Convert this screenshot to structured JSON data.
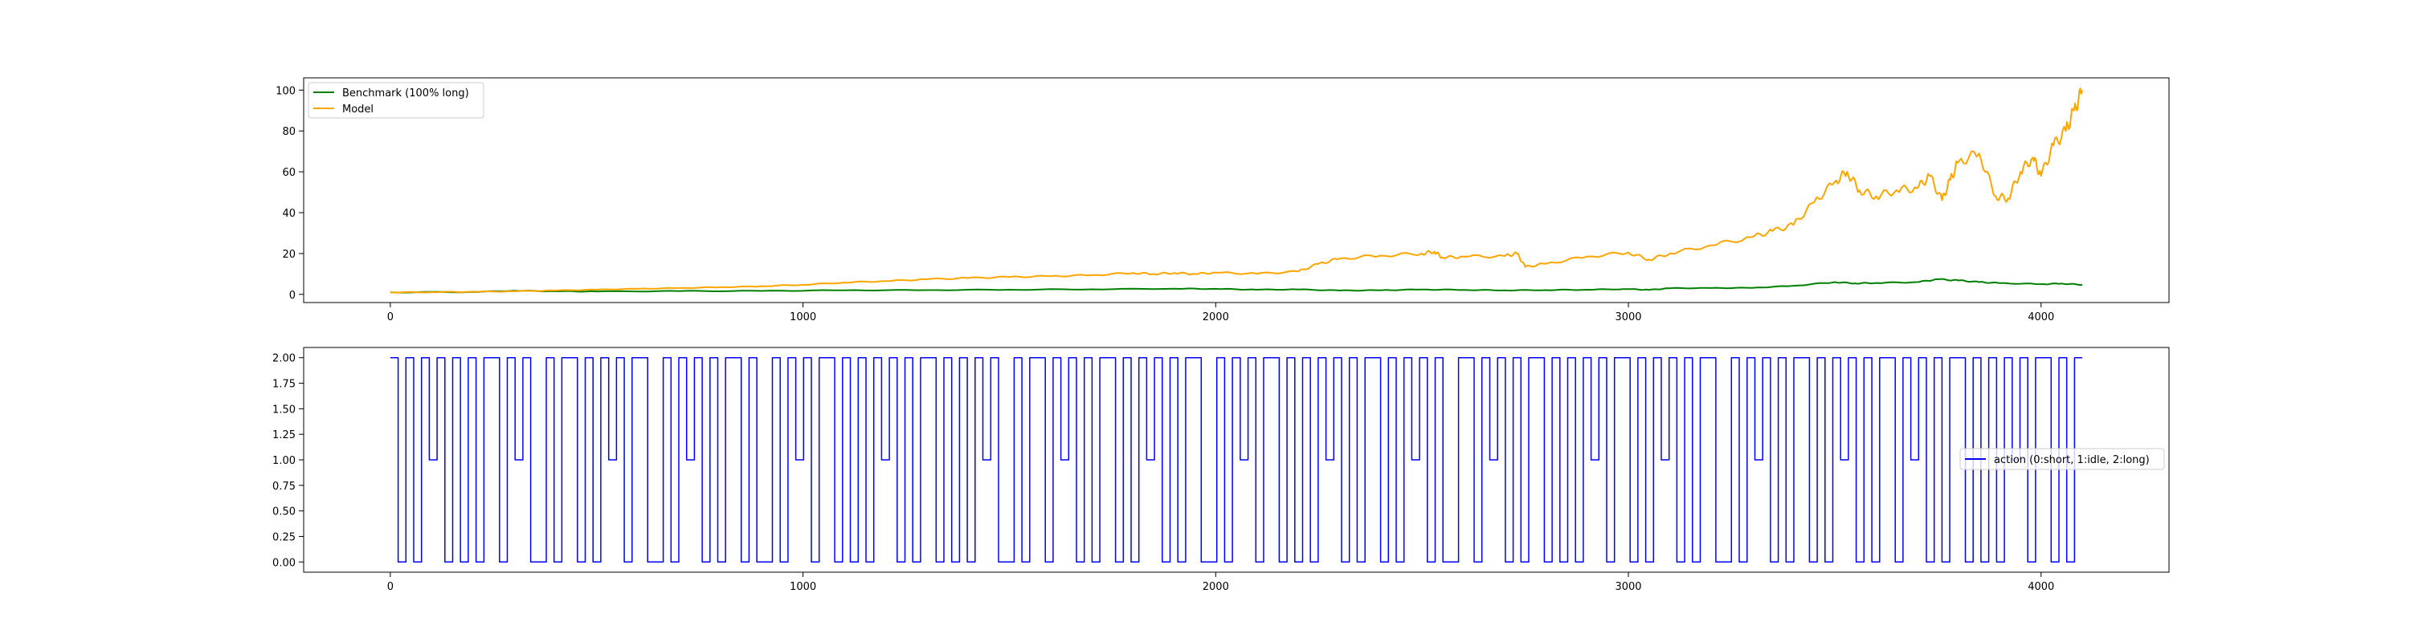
{
  "chart_data": [
    {
      "type": "line",
      "title": "",
      "xlabel": "",
      "ylabel": "",
      "xlim": [
        -210,
        4310
      ],
      "ylim": [
        -4,
        106
      ],
      "grid": false,
      "legend_position": "top-left",
      "x_ticks": [
        0,
        1000,
        2000,
        3000,
        4000
      ],
      "x_tick_labels": [
        "0",
        "1000",
        "2000",
        "3000",
        "4000"
      ],
      "y_ticks": [
        0,
        20,
        40,
        60,
        80,
        100
      ],
      "y_tick_labels": [
        "0",
        "20",
        "40",
        "60",
        "80",
        "100"
      ],
      "series": [
        {
          "name": "Benchmark (100% long)",
          "color": "#008000",
          "x": [
            0,
            200,
            300,
            400,
            500,
            700,
            900,
            1100,
            1300,
            1500,
            1700,
            1900,
            2000,
            2100,
            2200,
            2300,
            2400,
            2500,
            2600,
            2700,
            2800,
            2900,
            3000,
            3050,
            3100,
            3200,
            3300,
            3400,
            3500,
            3550,
            3600,
            3700,
            3750,
            3800,
            3850,
            3900,
            4000,
            4050,
            4100
          ],
          "values": [
            1.0,
            1.2,
            1.8,
            1.5,
            1.4,
            1.6,
            1.7,
            2.0,
            2.1,
            2.3,
            2.5,
            2.8,
            2.7,
            2.3,
            2.4,
            1.9,
            2.0,
            2.4,
            2.2,
            2.0,
            2.1,
            2.3,
            2.6,
            2.2,
            3.0,
            3.1,
            3.2,
            4.2,
            6.0,
            5.4,
            5.6,
            6.0,
            7.4,
            6.8,
            6.0,
            5.5,
            5.0,
            5.3,
            4.7
          ]
        },
        {
          "name": "Model",
          "color": "#FFA500",
          "x": [
            0,
            100,
            200,
            300,
            400,
            500,
            600,
            700,
            800,
            900,
            1000,
            1100,
            1200,
            1300,
            1400,
            1500,
            1600,
            1700,
            1800,
            1850,
            1900,
            1950,
            2000,
            2100,
            2200,
            2250,
            2300,
            2400,
            2500,
            2530,
            2550,
            2600,
            2700,
            2730,
            2750,
            2800,
            2900,
            3000,
            3050,
            3100,
            3200,
            3300,
            3350,
            3400,
            3450,
            3500,
            3530,
            3560,
            3600,
            3650,
            3700,
            3730,
            3760,
            3780,
            3800,
            3850,
            3890,
            3920,
            3950,
            3980,
            4000,
            4030,
            4060,
            4080,
            4100
          ],
          "values": [
            1.0,
            1.1,
            1.3,
            1.5,
            1.9,
            2.3,
            2.7,
            3.1,
            3.5,
            4.0,
            4.7,
            5.8,
            6.5,
            7.4,
            8.0,
            8.5,
            8.9,
            9.4,
            10.5,
            10.0,
            10.5,
            10.0,
            10.6,
            10.1,
            11.2,
            15.0,
            17.5,
            19.0,
            20.0,
            21.0,
            18.0,
            18.5,
            18.7,
            20.0,
            13.5,
            15.0,
            18.5,
            20.5,
            17.0,
            20.0,
            24.0,
            28.0,
            31.0,
            34.0,
            45.0,
            55.0,
            60.0,
            51.0,
            48.0,
            51.0,
            52.0,
            58.0,
            46.0,
            56.0,
            65.0,
            69.0,
            48.0,
            47.0,
            60.0,
            67.0,
            58.0,
            73.0,
            80.0,
            90.0,
            100.0
          ]
        }
      ]
    },
    {
      "type": "line",
      "step": true,
      "title": "",
      "xlabel": "",
      "ylabel": "",
      "xlim": [
        -210,
        4310
      ],
      "ylim": [
        -0.1,
        2.1
      ],
      "grid": false,
      "legend_position": "right",
      "x_ticks": [
        0,
        1000,
        2000,
        3000,
        4000
      ],
      "x_tick_labels": [
        "0",
        "1000",
        "2000",
        "3000",
        "4000"
      ],
      "y_ticks": [
        0,
        0.25,
        0.5,
        0.75,
        1.0,
        1.25,
        1.5,
        1.75,
        2.0
      ],
      "y_tick_labels": [
        "0.00",
        "0.25",
        "0.50",
        "0.75",
        "1.00",
        "1.25",
        "1.50",
        "1.75",
        "2.00"
      ],
      "series": [
        {
          "name": "action (0:short, 1:idle, 2:long)",
          "color": "#0000FF",
          "x_start": 0,
          "x_end": 4100,
          "values_note_none": "",
          "values": [
            2,
            0,
            2,
            0,
            2,
            1,
            2,
            0,
            2,
            0,
            2,
            0,
            2,
            2,
            0,
            2,
            1,
            2,
            0,
            0,
            2,
            0,
            2,
            2,
            0,
            2,
            0,
            2,
            1,
            2,
            0,
            2,
            2,
            0,
            0,
            2,
            0,
            2,
            1,
            2,
            0,
            2,
            0,
            2,
            2,
            0,
            2,
            0,
            0,
            2,
            0,
            2,
            1,
            2,
            0,
            2,
            2,
            0,
            2,
            0,
            2,
            0,
            2,
            1,
            2,
            0,
            2,
            0,
            2,
            2,
            0,
            2,
            0,
            2,
            0,
            2,
            1,
            2,
            0,
            0,
            2,
            0,
            2,
            2,
            0,
            2,
            1,
            2,
            0,
            2,
            0,
            2,
            2,
            0,
            2,
            0,
            2,
            1,
            2,
            0,
            2,
            0,
            2,
            2,
            0,
            0,
            2,
            0,
            2,
            1,
            2,
            0,
            2,
            2,
            0,
            2,
            0,
            2,
            0,
            2,
            1,
            2,
            0,
            2,
            0,
            2,
            2,
            0,
            2,
            0,
            2,
            1,
            2,
            0,
            2,
            0,
            0,
            2,
            2,
            0,
            2,
            1,
            2,
            0,
            2,
            0,
            2,
            2,
            0,
            2,
            0,
            2,
            0,
            2,
            1,
            2,
            0,
            2,
            2,
            0,
            2,
            0,
            2,
            1,
            2,
            0,
            2,
            0,
            2,
            2,
            0,
            0,
            2,
            0,
            2,
            1,
            2,
            0,
            2,
            0,
            2,
            2,
            0,
            2,
            0,
            2,
            1,
            2,
            0,
            2,
            0,
            2,
            2,
            0,
            2,
            1,
            2,
            0,
            2,
            0,
            2,
            2,
            0,
            2,
            0,
            2,
            0,
            2,
            1,
            2,
            0,
            2,
            2,
            0,
            2,
            0,
            2
          ]
        }
      ]
    }
  ]
}
